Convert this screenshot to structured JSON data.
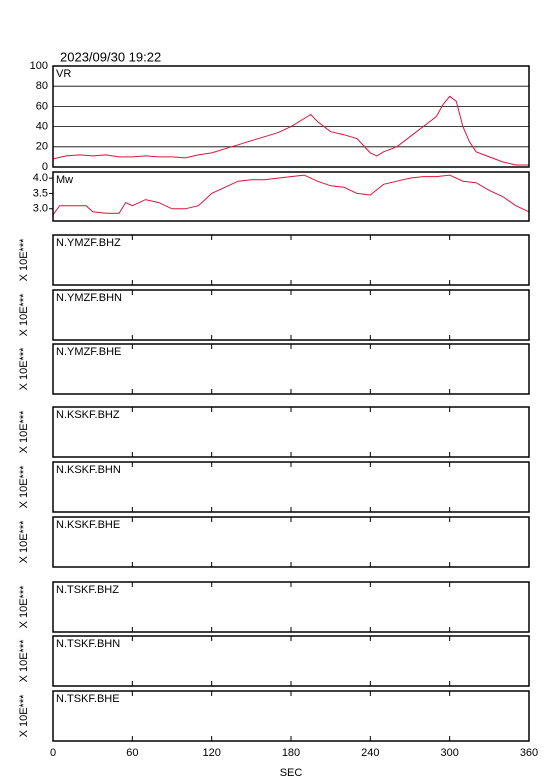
{
  "title": "2023/09/30 19:22",
  "x_axis": {
    "xlim": [
      0,
      360
    ],
    "xticks": [
      0,
      60,
      120,
      180,
      240,
      300,
      360
    ],
    "xlabel": "SEC"
  },
  "chart_data": [
    {
      "type": "line",
      "label": "VR",
      "color": "#dc143c",
      "ylim": [
        0,
        100
      ],
      "yticks": [
        0,
        20,
        40,
        60,
        80,
        100
      ],
      "grid": true,
      "x": [
        0,
        10,
        20,
        30,
        40,
        50,
        60,
        70,
        80,
        90,
        100,
        110,
        120,
        130,
        140,
        150,
        160,
        170,
        180,
        190,
        195,
        200,
        210,
        220,
        230,
        240,
        245,
        250,
        260,
        270,
        280,
        290,
        295,
        300,
        305,
        310,
        315,
        320,
        330,
        340,
        350,
        360
      ],
      "values": [
        8,
        11,
        12,
        11,
        12,
        10,
        10,
        11,
        10,
        10,
        9,
        12,
        14,
        18,
        22,
        26,
        30,
        34,
        40,
        48,
        52,
        45,
        35,
        32,
        28,
        14,
        11,
        15,
        20,
        30,
        40,
        50,
        62,
        70,
        65,
        40,
        25,
        15,
        10,
        5,
        2,
        2
      ]
    },
    {
      "type": "line",
      "label": "Mw",
      "color": "#dc143c",
      "ylim": [
        2.6,
        4.2
      ],
      "yticks": [
        {
          "value": 3,
          "label": "3.0"
        },
        {
          "value": 3.5,
          "label": "3.5"
        },
        {
          "value": 4,
          "label": "4.0"
        }
      ],
      "grid": false,
      "x": [
        0,
        5,
        10,
        20,
        25,
        30,
        40,
        50,
        55,
        60,
        70,
        80,
        90,
        100,
        110,
        115,
        120,
        130,
        140,
        150,
        160,
        170,
        180,
        190,
        200,
        210,
        220,
        230,
        240,
        250,
        260,
        270,
        280,
        290,
        300,
        310,
        320,
        330,
        340,
        350,
        360
      ],
      "values": [
        2.8,
        3.1,
        3.1,
        3.1,
        3.1,
        2.9,
        2.85,
        2.85,
        3.2,
        3.1,
        3.3,
        3.2,
        3.0,
        3.0,
        3.1,
        3.3,
        3.5,
        3.7,
        3.9,
        3.95,
        3.95,
        4.0,
        4.05,
        4.1,
        3.9,
        3.75,
        3.7,
        3.5,
        3.45,
        3.8,
        3.9,
        4.0,
        4.05,
        4.05,
        4.1,
        3.9,
        3.85,
        3.6,
        3.4,
        3.1,
        2.9
      ]
    }
  ],
  "panels": [
    {
      "station": "N.YMZF.BHZ",
      "scale_label": "X 10E***"
    },
    {
      "station": "N.YMZF.BHN",
      "scale_label": "X 10E***"
    },
    {
      "station": "N.YMZF.BHE",
      "scale_label": "X 10E***"
    },
    {
      "station": "N.KSKF.BHZ",
      "scale_label": "X 10E***"
    },
    {
      "station": "N.KSKF.BHN",
      "scale_label": "X 10E***"
    },
    {
      "station": "N.KSKF.BHE",
      "scale_label": "X 10E***"
    },
    {
      "station": "N.TSKF.BHZ",
      "scale_label": "X 10E***"
    },
    {
      "station": "N.TSKF.BHN",
      "scale_label": "X 10E***"
    },
    {
      "station": "N.TSKF.BHE",
      "scale_label": "X 10E***"
    }
  ]
}
